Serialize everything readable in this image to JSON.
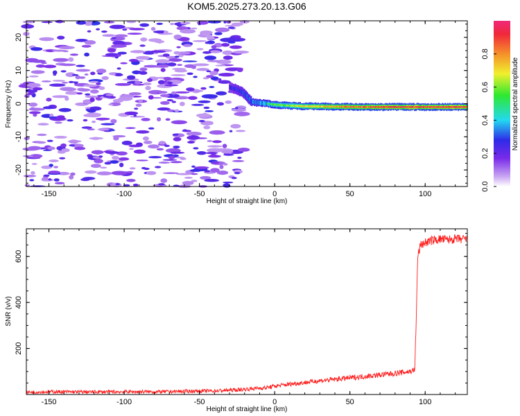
{
  "figure": {
    "title": "KOM5.2025.273.20.13.G06"
  },
  "chart_data": [
    {
      "type": "heatmap",
      "xlabel": "Height of straight line (km)",
      "ylabel": "Frequency (Hz)",
      "xlim": [
        -165,
        128
      ],
      "ylim": [
        -25,
        25
      ],
      "xticks": [
        -150,
        -100,
        -50,
        0,
        50,
        100
      ],
      "yticks": [
        -20,
        -10,
        0,
        10,
        20
      ],
      "colorbar": {
        "label": "Normalized spectral amplitude",
        "range": [
          0,
          1
        ],
        "ticks": [
          "0.0",
          "0.2",
          "0.4",
          "0.6",
          "0.8"
        ],
        "colormap": [
          "#ffffff",
          "#c9a6f2",
          "#7a2be8",
          "#2e2be8",
          "#23d9f0",
          "#2ee830",
          "#f0f02e",
          "#f5902a",
          "#f0283b",
          "#f0287a"
        ]
      },
      "ridge": {
        "description_values": "dominant frequency track (Hz) vs height (km)",
        "x": [
          -30,
          -25,
          -20,
          -15,
          -10,
          -5,
          0,
          10,
          20,
          40,
          60,
          80,
          95,
          110,
          128
        ],
        "y": [
          5.0,
          4.2,
          3.0,
          0.5,
          0.2,
          0.0,
          -0.3,
          -0.6,
          -0.8,
          -0.9,
          -1.0,
          -1.0,
          -1.0,
          -1.0,
          -1.0
        ],
        "amplitude": [
          0.3,
          0.35,
          0.4,
          0.45,
          0.5,
          0.5,
          0.55,
          0.6,
          0.7,
          0.8,
          0.85,
          0.9,
          0.9,
          0.9,
          0.9
        ]
      },
      "noise_region_x": [
        -165,
        -20
      ]
    },
    {
      "type": "line",
      "xlabel": "Height of straight line (km)",
      "ylabel": "SNR (v/v)",
      "xlim": [
        -165,
        128
      ],
      "ylim": [
        0,
        720
      ],
      "xticks": [
        -150,
        -100,
        -50,
        0,
        50,
        100
      ],
      "yticks": [
        200,
        400,
        600
      ],
      "color": "#ff1a1a",
      "series": [
        {
          "x": [
            -165,
            -150,
            -125,
            -100,
            -75,
            -50,
            -40,
            -25,
            -15,
            -5,
            0,
            10,
            20,
            30,
            40,
            50,
            60,
            70,
            80,
            90,
            93,
            94,
            95,
            97,
            100,
            105,
            110,
            115,
            120,
            125,
            128
          ],
          "y": [
            10,
            12,
            11,
            12,
            12,
            15,
            16,
            20,
            25,
            30,
            36,
            45,
            52,
            60,
            66,
            72,
            79,
            85,
            92,
            100,
            106,
            300,
            600,
            650,
            660,
            670,
            675,
            672,
            676,
            674,
            675
          ]
        }
      ]
    }
  ]
}
